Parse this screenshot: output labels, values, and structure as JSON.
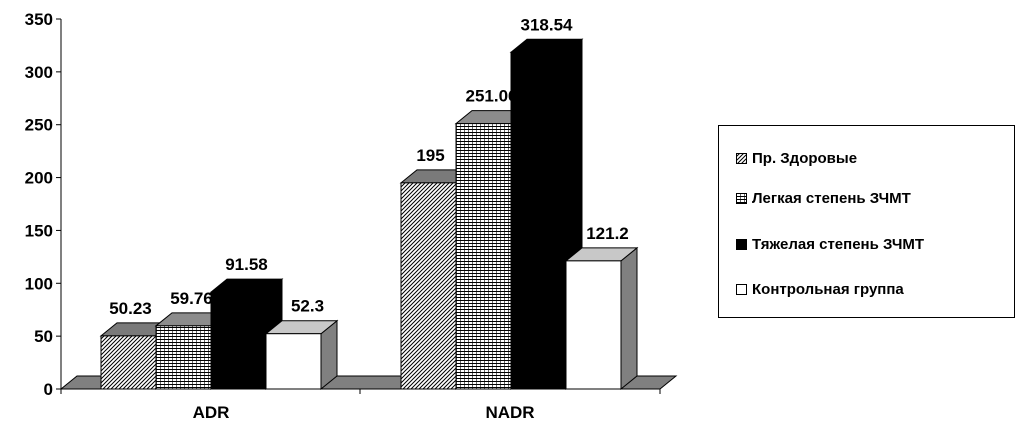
{
  "chart_data": {
    "type": "bar",
    "categories": [
      "ADR",
      "NADR"
    ],
    "series": [
      {
        "name": "Пр. Здоровые",
        "values": [
          50.23,
          195
        ],
        "labels": [
          "50.23",
          "195"
        ],
        "pattern": "diagonal",
        "color": "#000000"
      },
      {
        "name": "Легкая степень ЗЧМТ",
        "values": [
          59.76,
          251.06
        ],
        "labels": [
          "59.76",
          "251.06"
        ],
        "pattern": "grid",
        "color": "#000000"
      },
      {
        "name": "Тяжелая степень ЗЧМТ",
        "values": [
          91.58,
          318.54
        ],
        "labels": [
          "91.58",
          "318.54"
        ],
        "pattern": "solid",
        "color": "#000000"
      },
      {
        "name": "Контрольная группа",
        "values": [
          52.3,
          121.2
        ],
        "labels": [
          "52.3",
          "121.2"
        ],
        "pattern": "white",
        "color": "#ffffff"
      }
    ],
    "yticks": [
      "0",
      "50",
      "100",
      "150",
      "200",
      "250",
      "300",
      "350"
    ],
    "ylim": [
      0,
      350
    ],
    "grid": false,
    "three_d": true,
    "floor_color": "#808080",
    "legend_position": "right"
  }
}
